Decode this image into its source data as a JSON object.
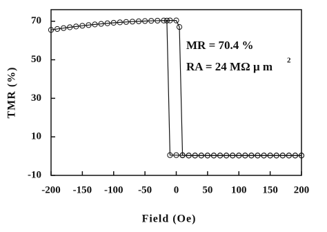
{
  "chart_data": {
    "type": "line",
    "x_label": "Field (Oe)",
    "y_label": "TMR (%)",
    "annotations": [
      "MR  =  70.4 %",
      "RA  =  24 MΩ  μ m",
      "2"
    ],
    "xlim": [
      -200,
      200
    ],
    "xticks": [
      -200,
      -150,
      -100,
      -50,
      0,
      50,
      100,
      150,
      200
    ],
    "ylim": [
      -10,
      76
    ],
    "yticks": [
      -10,
      10,
      30,
      50,
      70
    ],
    "series": [
      {
        "color": "#111111",
        "x": [
          -200,
          -190,
          -180,
          -170,
          -160,
          -150,
          -140,
          -130,
          -120,
          -110,
          -100,
          -90,
          -80,
          -70,
          -60,
          -50,
          -40,
          -30,
          -20,
          -10,
          0,
          5,
          10,
          20,
          30,
          40,
          50,
          60,
          70,
          80,
          90,
          100,
          110,
          120,
          130,
          140,
          150,
          160,
          170,
          180,
          190,
          200
        ],
        "values": [
          65.5,
          65.98,
          66.43,
          66.86,
          67.26,
          67.64,
          68.0,
          68.33,
          68.64,
          68.92,
          69.18,
          69.41,
          69.62,
          69.8,
          69.96,
          70.09,
          70.2,
          70.29,
          70.35,
          70.39,
          70.4,
          67,
          0.5,
          0.3,
          0.3,
          0.3,
          0.3,
          0.3,
          0.3,
          0.3,
          0.3,
          0.3,
          0.3,
          0.3,
          0.3,
          0.3,
          0.3,
          0.3,
          0.3,
          0.3,
          0.3,
          0.3
        ]
      },
      {
        "color": "#111111",
        "x": [
          200,
          190,
          180,
          170,
          160,
          150,
          140,
          130,
          120,
          110,
          100,
          90,
          80,
          70,
          60,
          50,
          40,
          30,
          20,
          10,
          0,
          -10,
          -15
        ],
        "values": [
          0.3,
          0.3,
          0.3,
          0.3,
          0.3,
          0.3,
          0.3,
          0.3,
          0.3,
          0.3,
          0.3,
          0.3,
          0.3,
          0.3,
          0.3,
          0.3,
          0.3,
          0.3,
          0.3,
          0.4,
          0.5,
          0.5,
          70.3
        ]
      }
    ]
  }
}
